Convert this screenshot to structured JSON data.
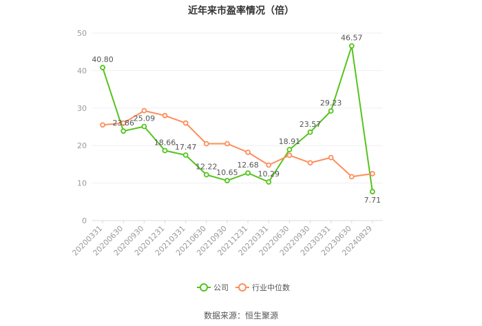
{
  "chart_data": {
    "type": "line",
    "title": "近年来市盈率情况（倍）",
    "categories": [
      "20200331",
      "20200630",
      "20200930",
      "20201231",
      "20210331",
      "20210630",
      "20210930",
      "20211231",
      "20220331",
      "20220630",
      "20220930",
      "20230331",
      "20230630",
      "20240829"
    ],
    "series": [
      {
        "name": "公司",
        "values": [
          40.8,
          23.86,
          25.09,
          18.66,
          17.47,
          12.22,
          10.65,
          12.68,
          10.29,
          18.91,
          23.57,
          29.23,
          46.57,
          7.71
        ],
        "color": "#52c41a",
        "labels": [
          "40.80",
          "23.86",
          "25.09",
          "18.66",
          "17.47",
          "12.22",
          "10.65",
          "12.68",
          "10.29",
          "18.91",
          "23.57",
          "29.23",
          "46.57",
          "7.71"
        ]
      },
      {
        "name": "行业中位数",
        "values": [
          25.5,
          26.0,
          29.3,
          28.0,
          26.0,
          20.5,
          20.5,
          18.2,
          14.8,
          17.4,
          15.4,
          16.8,
          11.7,
          12.5
        ],
        "color": "#ff8c5a"
      }
    ],
    "ylim": [
      0,
      50
    ],
    "yticks": [
      0,
      10,
      20,
      30,
      40,
      50
    ],
    "grid": true,
    "legend_position": "bottom"
  },
  "source": "数据来源：恒生聚源"
}
